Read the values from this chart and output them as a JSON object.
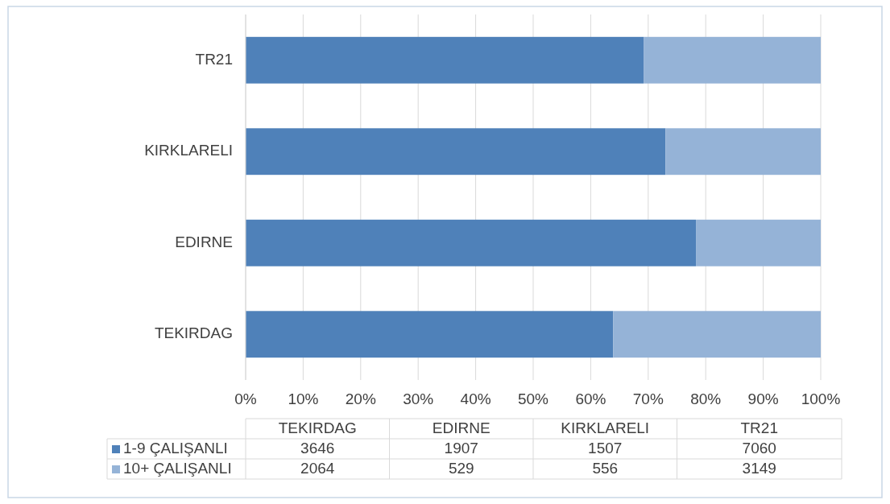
{
  "chart_data": [
    {
      "type": "bar",
      "orientation": "horizontal",
      "stacked": true,
      "categories": [
        "TR21",
        "KIRKLARELI",
        "EDIRNE",
        "TEKIRDAG"
      ],
      "series": [
        {
          "color": "#4f81b9",
          "values": [
            69.2,
            73.0,
            78.3,
            63.9
          ]
        },
        {
          "color": "#95b3d7",
          "values": [
            30.8,
            27.0,
            21.7,
            36.1
          ]
        }
      ],
      "xlim": [
        0,
        100
      ],
      "xticks": [
        {
          "value": 0,
          "label": "0%"
        },
        {
          "value": 10,
          "label": "10%"
        },
        {
          "value": 20,
          "label": "20%"
        },
        {
          "value": 30,
          "label": "30%"
        },
        {
          "value": 40,
          "label": "40%"
        },
        {
          "value": 50,
          "label": "50%"
        },
        {
          "value": 60,
          "label": "60%"
        },
        {
          "value": 70,
          "label": "70%"
        },
        {
          "value": 80,
          "label": "80%"
        },
        {
          "value": 90,
          "label": "90%"
        },
        {
          "value": 100,
          "label": "100%"
        }
      ],
      "grid": "x"
    },
    {
      "type": "other",
      "categories": [
        "TEKIRDAG",
        "EDIRNE",
        "KIRKLARELI",
        "TR21"
      ],
      "series": [
        {
          "name": "1-9 ÇALIŞANLI",
          "color": "#4f81b9",
          "values": [
            3646,
            1907,
            1507,
            7060
          ]
        },
        {
          "name": "10+ ÇALIŞANLI",
          "color": "#95b3d7",
          "values": [
            2064,
            529,
            556,
            3149
          ]
        }
      ],
      "data_labels": true
    }
  ]
}
